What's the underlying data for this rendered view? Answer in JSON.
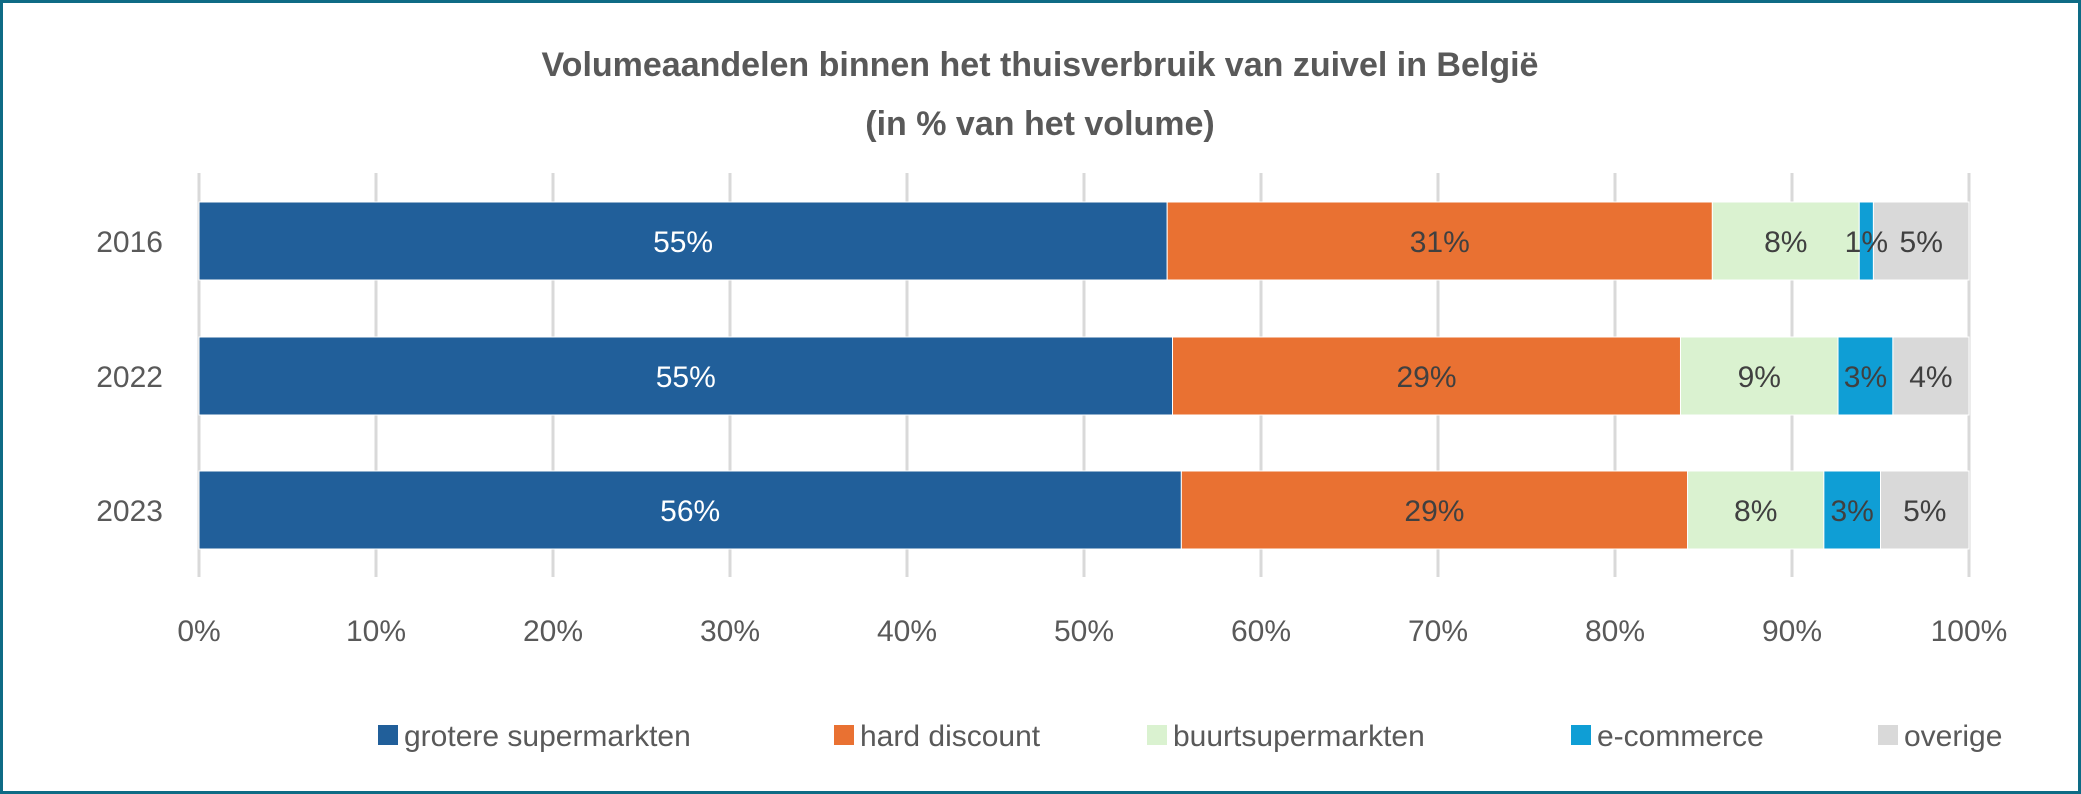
{
  "chart_data": {
    "type": "bar",
    "orientation": "horizontal",
    "stacked": true,
    "title": "Volumeaandelen binnen het thuisverbruik van zuivel in België",
    "subtitle": "(in % van het volume)",
    "categories": [
      "2016",
      "2022",
      "2023"
    ],
    "xlim": [
      0,
      100
    ],
    "x_ticks": [
      "0%",
      "10%",
      "20%",
      "30%",
      "40%",
      "50%",
      "60%",
      "70%",
      "80%",
      "90%",
      "100%"
    ],
    "grid": "vertical",
    "legend_position": "bottom",
    "series": [
      {
        "name": "grotere supermarkten",
        "color": "#215f9a",
        "label_color": "#ffffff",
        "values": [
          54.7,
          55.0,
          55.5
        ],
        "labels": [
          "55%",
          "55%",
          "56%"
        ]
      },
      {
        "name": "hard discount",
        "color": "#e97132",
        "label_color": "#404040",
        "values": [
          30.8,
          28.7,
          28.6
        ],
        "labels": [
          "31%",
          "29%",
          "29%"
        ]
      },
      {
        "name": "buurtsupermarkten",
        "color": "#daf2d0",
        "label_color": "#404040",
        "values": [
          8.3,
          8.9,
          7.7
        ],
        "labels": [
          "8%",
          "9%",
          "8%"
        ]
      },
      {
        "name": "e-commerce",
        "color": "#0f9ed5",
        "label_color": "#404040",
        "values": [
          0.8,
          3.1,
          3.2
        ],
        "labels": [
          "1%",
          "3%",
          "3%"
        ]
      },
      {
        "name": "overige",
        "color": "#d9d9d9",
        "label_color": "#404040",
        "values": [
          5.4,
          4.3,
          5.0
        ],
        "labels": [
          "5%",
          "4%",
          "5%"
        ]
      }
    ]
  }
}
